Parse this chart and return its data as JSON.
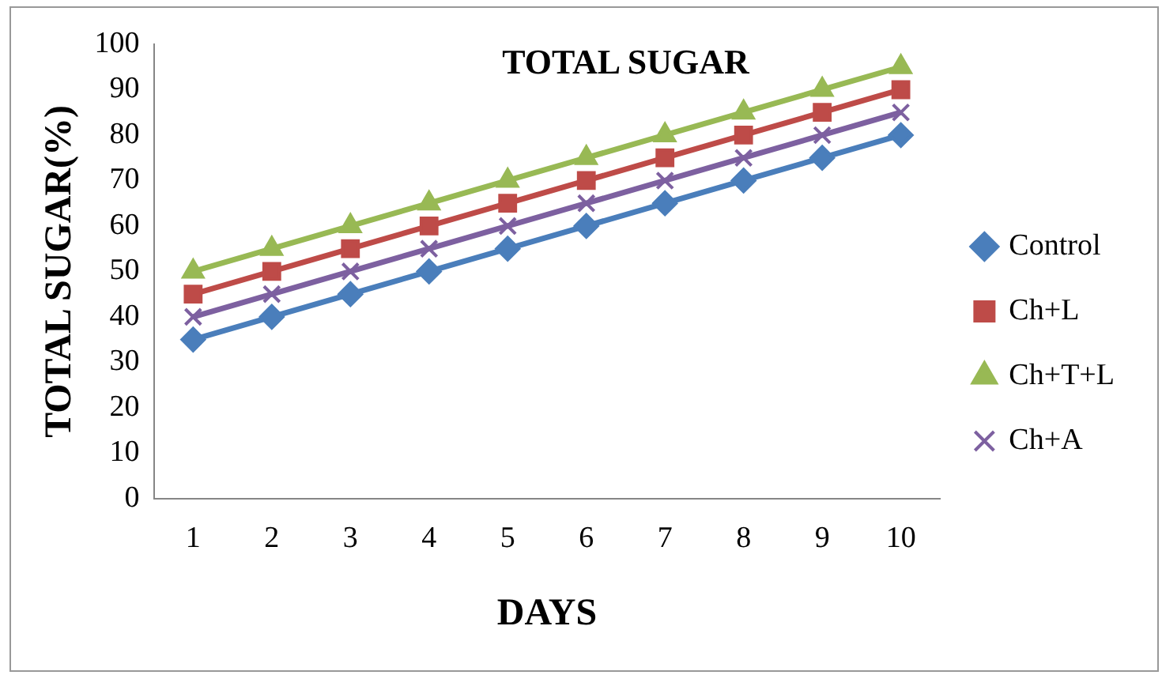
{
  "chart_data": {
    "type": "line",
    "title": "TOTAL SUGAR",
    "xlabel": "DAYS",
    "ylabel": "TOTAL SUGAR(%)",
    "categories": [
      "1",
      "2",
      "3",
      "4",
      "5",
      "6",
      "7",
      "8",
      "9",
      "10"
    ],
    "series": [
      {
        "name": "Control",
        "color": "#4a7ebb",
        "marker": "diamond",
        "values": [
          35,
          40,
          45,
          50,
          55,
          60,
          65,
          70,
          75,
          80
        ]
      },
      {
        "name": "Ch+L",
        "color": "#be4b48",
        "marker": "square",
        "values": [
          45,
          50,
          55,
          60,
          65,
          70,
          75,
          80,
          85,
          90
        ]
      },
      {
        "name": "Ch+T+L",
        "color": "#98b954",
        "marker": "triangle",
        "values": [
          50,
          55,
          60,
          65,
          70,
          75,
          80,
          85,
          90,
          95
        ]
      },
      {
        "name": "Ch+A",
        "color": "#7d60a0",
        "marker": "cross",
        "values": [
          40,
          45,
          50,
          55,
          60,
          65,
          70,
          75,
          80,
          85
        ]
      }
    ],
    "ylim": [
      0,
      100
    ],
    "yticks": [
      0,
      10,
      20,
      30,
      40,
      50,
      60,
      70,
      80,
      90,
      100
    ],
    "grid": false,
    "legend": "right"
  }
}
